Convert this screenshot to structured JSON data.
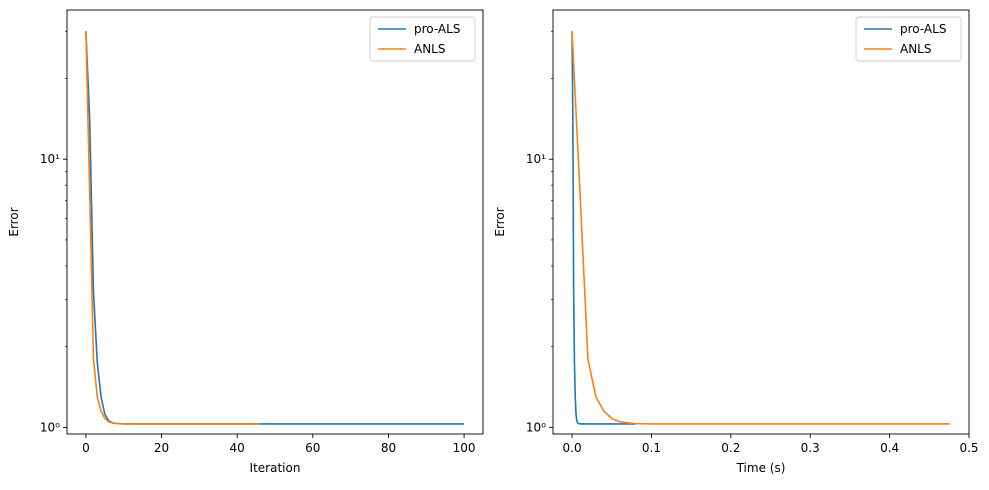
{
  "chart_data": [
    {
      "type": "line",
      "title": "",
      "xlabel": "Iteration",
      "ylabel": "Error",
      "xscale": "linear",
      "yscale": "log",
      "xlim": [
        -5,
        105
      ],
      "ylim": [
        0.945,
        36
      ],
      "xticks": [
        0,
        20,
        40,
        60,
        80,
        100
      ],
      "xtick_labels": [
        "0",
        "20",
        "40",
        "60",
        "80",
        "100"
      ],
      "yticks": [
        1,
        10
      ],
      "ytick_labels": [
        "10⁰",
        "10¹"
      ],
      "grid": false,
      "legend": "top-right",
      "series": [
        {
          "name": "pro-ALS",
          "color": "#1f77b4",
          "x": [
            0,
            1,
            2,
            3,
            4,
            5,
            6,
            7,
            8,
            10,
            15,
            20,
            30,
            40,
            50,
            60,
            70,
            80,
            90,
            100
          ],
          "y": [
            30,
            14,
            3.2,
            1.75,
            1.3,
            1.12,
            1.06,
            1.04,
            1.035,
            1.03,
            1.03,
            1.03,
            1.03,
            1.03,
            1.03,
            1.03,
            1.03,
            1.03,
            1.03,
            1.03
          ]
        },
        {
          "name": "ANLS",
          "color": "#ff7f0e",
          "x": [
            0,
            1,
            2,
            3,
            4,
            5,
            6,
            7,
            8,
            10,
            15,
            20,
            30,
            40,
            46
          ],
          "y": [
            30,
            7.5,
            1.8,
            1.3,
            1.15,
            1.08,
            1.05,
            1.04,
            1.033,
            1.03,
            1.03,
            1.03,
            1.03,
            1.03,
            1.03
          ]
        }
      ]
    },
    {
      "type": "line",
      "title": "",
      "xlabel": "Time (s)",
      "ylabel": "Error",
      "xscale": "linear",
      "yscale": "log",
      "xlim": [
        -0.024,
        0.5
      ],
      "ylim": [
        0.945,
        36
      ],
      "xticks": [
        0.0,
        0.1,
        0.2,
        0.3,
        0.4,
        0.5
      ],
      "xtick_labels": [
        "0.0",
        "0.1",
        "0.2",
        "0.3",
        "0.4",
        "0.5"
      ],
      "yticks": [
        1,
        10
      ],
      "ytick_labels": [
        "10⁰",
        "10¹"
      ],
      "grid": false,
      "legend": "top-right",
      "series": [
        {
          "name": "pro-ALS",
          "color": "#1f77b4",
          "x": [
            0.0,
            0.001,
            0.002,
            0.003,
            0.004,
            0.005,
            0.006,
            0.007,
            0.008,
            0.01,
            0.02,
            0.04,
            0.06,
            0.08
          ],
          "y": [
            30,
            14,
            3.2,
            1.75,
            1.3,
            1.12,
            1.06,
            1.04,
            1.035,
            1.03,
            1.03,
            1.03,
            1.03,
            1.03
          ]
        },
        {
          "name": "ANLS",
          "color": "#ff7f0e",
          "x": [
            0.0,
            0.01,
            0.02,
            0.03,
            0.04,
            0.05,
            0.06,
            0.07,
            0.08,
            0.1,
            0.15,
            0.2,
            0.3,
            0.4,
            0.476
          ],
          "y": [
            30,
            7.5,
            1.8,
            1.3,
            1.15,
            1.08,
            1.05,
            1.04,
            1.033,
            1.03,
            1.03,
            1.03,
            1.03,
            1.03,
            1.03
          ]
        }
      ]
    }
  ]
}
